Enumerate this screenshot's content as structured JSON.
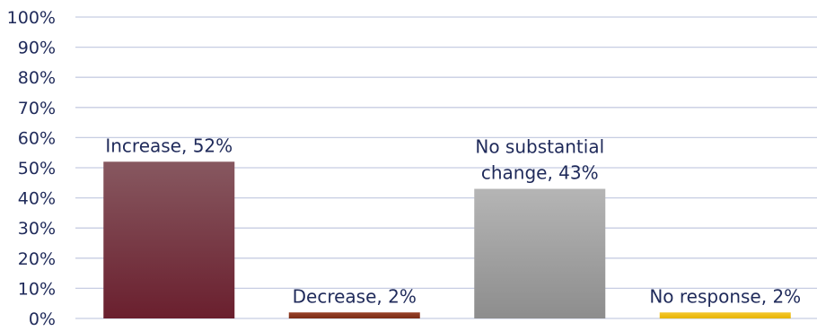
{
  "chart_data": {
    "type": "bar",
    "title": "",
    "xlabel": "",
    "ylabel": "",
    "ylim": [
      0,
      100
    ],
    "y_ticks": [
      "0%",
      "10%",
      "20%",
      "30%",
      "40%",
      "50%",
      "60%",
      "70%",
      "80%",
      "90%",
      "100%"
    ],
    "grid": true,
    "legend": "none",
    "text_color": "#1f2a5a",
    "grid_color": "#c7cde2",
    "categories": [
      "Increase",
      "Decrease",
      "No substantial change",
      "No response"
    ],
    "values": [
      52,
      2,
      43,
      2
    ],
    "data_labels": [
      [
        "Increase, 52%"
      ],
      [
        "Decrease, 2%"
      ],
      [
        "No substantial",
        "change, 43%"
      ],
      [
        "No response, 2%"
      ]
    ],
    "colors": [
      [
        "#875860",
        "#6a1f2e"
      ],
      [
        "#9a4228",
        "#7a2c16"
      ],
      [
        "#b5b5b5",
        "#8d8d8d"
      ],
      [
        "#f4c730",
        "#e7b400"
      ]
    ]
  }
}
